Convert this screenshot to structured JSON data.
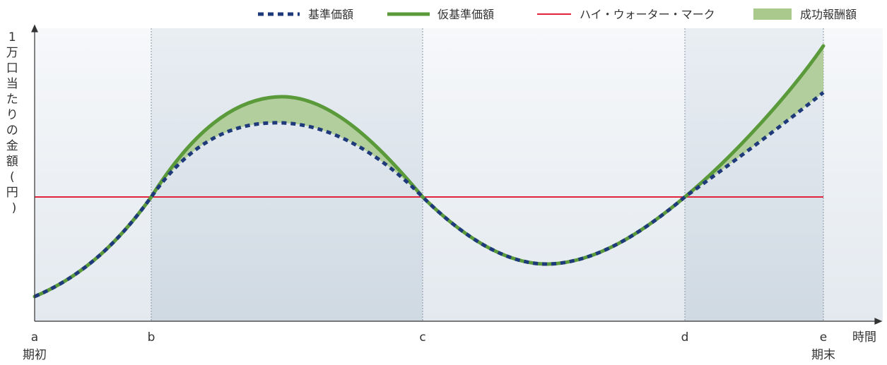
{
  "legend": {
    "base": "基準価額",
    "provisional": "仮基準価額",
    "hwm": "ハイ・ウォーター・マーク",
    "fee": "成功報酬額"
  },
  "colors": {
    "base": "#1f3a7a",
    "provisional": "#5a9a3a",
    "hwm": "#e0243c",
    "fee": "#a9c98d",
    "band": "#d6dfe7",
    "axis": "#333333"
  },
  "y_axis": {
    "label_chars": [
      "1",
      "万",
      "口",
      "当",
      "た",
      "り",
      "の",
      "金",
      "額",
      "(",
      "円",
      ")"
    ]
  },
  "x_axis": {
    "ticks": [
      "a",
      "b",
      "c",
      "d",
      "e"
    ],
    "start_label": "期初",
    "end_label": "期末",
    "title": "時間"
  }
}
